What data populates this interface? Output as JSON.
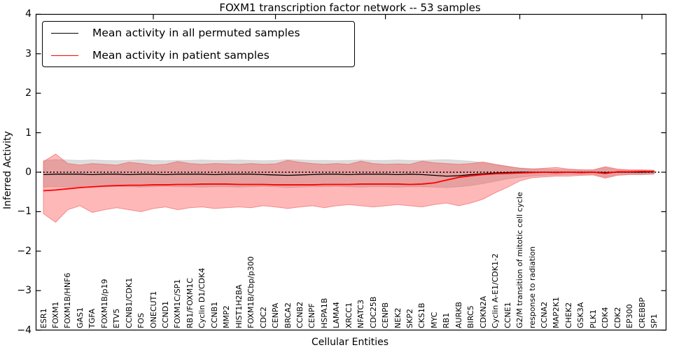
{
  "figure": {
    "title": "FOXM1 transcription factor network -- 53 samples",
    "xlabel": "Cellular Entities",
    "ylabel": "Inferred Activity"
  },
  "legend": {
    "items": [
      {
        "label": "Mean activity in all permuted samples",
        "color": "#000000"
      },
      {
        "label": "Mean activity in patient samples",
        "color": "#ff0000"
      }
    ]
  },
  "chart_data": {
    "type": "line",
    "title": "FOXM1 transcription factor network -- 53 samples",
    "xlabel": "Cellular Entities",
    "ylabel": "Inferred Activity",
    "ylim": [
      -4,
      4
    ],
    "grid": false,
    "legend_position": "upper left",
    "ytick_values": [
      4,
      3,
      2,
      1,
      0,
      -1,
      -2,
      -3,
      -4
    ],
    "ytick_labels": [
      "4",
      "3",
      "2",
      "1",
      "0",
      "−1",
      "−2",
      "−3",
      "−4"
    ],
    "zero_line": {
      "style": "dotted",
      "color": "#000000",
      "value": 0
    },
    "top_tick_indices": [
      9,
      19,
      28,
      39,
      49
    ],
    "categories": [
      "ESR1",
      "FOXM1",
      "FOXM1B/HNF6",
      "GAS1",
      "TGFA",
      "FOXM1B/p19",
      "ETV5",
      "CCNB1/CDK1",
      "FOS",
      "ONECUT1",
      "CCND1",
      "FOXM1C/SP1",
      "RB1/FOXM1C",
      "Cyclin D1/CDK4",
      "CCNB1",
      "MMP2",
      "HIST1H2BA",
      "FOXM1B/Cbp/p300",
      "CDC2",
      "CENPA",
      "BRCA2",
      "CCNB2",
      "CENPF",
      "HSPA1B",
      "LAMA4",
      "XRCC1",
      "NFATC3",
      "CDC25B",
      "CENPB",
      "NEK2",
      "SKP2",
      "CKS1B",
      "MYC",
      "RB1",
      "AURKB",
      "BIRC5",
      "CDKN2A",
      "Cyclin A-E1/CDK1-2",
      "CCNE1",
      "G2/M transition of mitotic cell cycle",
      "response to radiation",
      "CCNA2",
      "MAP2K1",
      "CHEK2",
      "GSK3A",
      "PLK1",
      "CDK4",
      "CDK2",
      "EP300",
      "CREBBP",
      "SP1"
    ],
    "series": [
      {
        "name": "Mean activity in all permuted samples",
        "kind": "line",
        "color": "#000000",
        "width": 1.3,
        "values": [
          -0.06,
          -0.05,
          -0.05,
          -0.05,
          -0.06,
          -0.05,
          -0.05,
          -0.06,
          -0.05,
          -0.05,
          -0.06,
          -0.05,
          -0.05,
          -0.05,
          -0.06,
          -0.05,
          -0.05,
          -0.05,
          -0.06,
          -0.07,
          -0.08,
          -0.07,
          -0.06,
          -0.05,
          -0.05,
          -0.06,
          -0.05,
          -0.05,
          -0.05,
          -0.06,
          -0.05,
          -0.06,
          -0.08,
          -0.1,
          -0.09,
          -0.06,
          -0.04,
          -0.02,
          -0.01,
          0.0,
          0.0,
          0.0,
          0.0,
          0.0,
          0.0,
          0.0,
          -0.01,
          0.0,
          0.0,
          0.0,
          0.01
        ]
      },
      {
        "name": "Mean activity in patient samples",
        "kind": "line",
        "color": "#ff0000",
        "width": 1.8,
        "values": [
          -0.47,
          -0.45,
          -0.42,
          -0.39,
          -0.37,
          -0.35,
          -0.34,
          -0.33,
          -0.33,
          -0.32,
          -0.32,
          -0.31,
          -0.31,
          -0.3,
          -0.3,
          -0.3,
          -0.31,
          -0.31,
          -0.31,
          -0.32,
          -0.32,
          -0.32,
          -0.32,
          -0.31,
          -0.31,
          -0.31,
          -0.3,
          -0.3,
          -0.3,
          -0.3,
          -0.31,
          -0.3,
          -0.27,
          -0.2,
          -0.13,
          -0.09,
          -0.06,
          -0.04,
          -0.03,
          -0.02,
          -0.01,
          0.0,
          -0.01,
          0.0,
          -0.01,
          0.0,
          -0.03,
          0.01,
          0.01,
          0.02,
          0.02
        ]
      },
      {
        "name": "Permuted samples +/- 1 std band",
        "kind": "band",
        "fill": "rgba(0,0,0,0.13)",
        "edge": "rgba(0,0,0,0.10)",
        "upper": [
          0.3,
          0.32,
          0.31,
          0.3,
          0.31,
          0.3,
          0.29,
          0.3,
          0.31,
          0.3,
          0.29,
          0.3,
          0.3,
          0.31,
          0.3,
          0.3,
          0.31,
          0.3,
          0.29,
          0.3,
          0.32,
          0.31,
          0.3,
          0.3,
          0.29,
          0.3,
          0.31,
          0.3,
          0.3,
          0.31,
          0.3,
          0.3,
          0.31,
          0.32,
          0.3,
          0.28,
          0.24,
          0.19,
          0.14,
          0.11,
          0.09,
          0.08,
          0.07,
          0.06,
          0.06,
          0.05,
          0.12,
          0.06,
          0.05,
          0.05,
          0.05
        ],
        "lower": [
          -0.38,
          -0.37,
          -0.38,
          -0.37,
          -0.38,
          -0.37,
          -0.36,
          -0.37,
          -0.38,
          -0.37,
          -0.36,
          -0.37,
          -0.37,
          -0.38,
          -0.37,
          -0.37,
          -0.38,
          -0.37,
          -0.36,
          -0.37,
          -0.39,
          -0.38,
          -0.37,
          -0.37,
          -0.36,
          -0.37,
          -0.38,
          -0.37,
          -0.37,
          -0.38,
          -0.37,
          -0.37,
          -0.38,
          -0.39,
          -0.37,
          -0.34,
          -0.29,
          -0.23,
          -0.17,
          -0.13,
          -0.1,
          -0.08,
          -0.07,
          -0.06,
          -0.06,
          -0.05,
          -0.13,
          -0.06,
          -0.05,
          -0.05,
          -0.04
        ]
      },
      {
        "name": "Patient samples +/- 1 std band",
        "kind": "band",
        "fill": "rgba(255,0,0,0.28)",
        "edge": "rgba(235,90,90,0.60)",
        "upper": [
          0.27,
          0.46,
          0.22,
          0.18,
          0.22,
          0.2,
          0.18,
          0.25,
          0.22,
          0.18,
          0.2,
          0.27,
          0.22,
          0.2,
          0.22,
          0.21,
          0.2,
          0.22,
          0.2,
          0.21,
          0.3,
          0.25,
          0.22,
          0.2,
          0.22,
          0.2,
          0.28,
          0.22,
          0.2,
          0.21,
          0.2,
          0.28,
          0.24,
          0.22,
          0.2,
          0.22,
          0.26,
          0.2,
          0.15,
          0.1,
          0.08,
          0.1,
          0.12,
          0.08,
          0.06,
          0.06,
          0.14,
          0.08,
          0.06,
          0.06,
          0.05
        ],
        "lower": [
          -1.05,
          -1.27,
          -0.95,
          -0.85,
          -1.02,
          -0.95,
          -0.9,
          -0.95,
          -1.0,
          -0.92,
          -0.88,
          -0.95,
          -0.9,
          -0.88,
          -0.92,
          -0.9,
          -0.88,
          -0.9,
          -0.85,
          -0.88,
          -0.92,
          -0.88,
          -0.85,
          -0.9,
          -0.85,
          -0.82,
          -0.85,
          -0.88,
          -0.85,
          -0.82,
          -0.85,
          -0.88,
          -0.82,
          -0.78,
          -0.85,
          -0.78,
          -0.68,
          -0.52,
          -0.38,
          -0.22,
          -0.14,
          -0.12,
          -0.1,
          -0.1,
          -0.08,
          -0.07,
          -0.15,
          -0.08,
          -0.06,
          -0.06,
          -0.05
        ]
      }
    ]
  }
}
